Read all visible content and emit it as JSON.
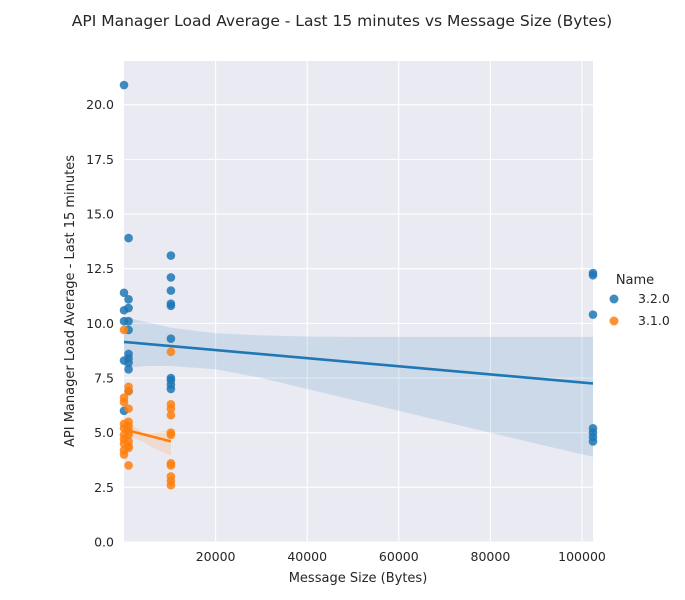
{
  "chart_data": {
    "type": "scatter",
    "title": "API Manager Load Average - Last 15 minutes vs Message Size (Bytes)",
    "xlabel": "Message Size (Bytes)",
    "ylabel": "API Manager Load Average - Last 15 minutes",
    "xlim": [
      0,
      102400
    ],
    "ylim": [
      0,
      22
    ],
    "xticks": [
      20000,
      40000,
      60000,
      80000,
      100000
    ],
    "xtick_labels": [
      "20000",
      "40000",
      "60000",
      "80000",
      "100000"
    ],
    "yticks": [
      0,
      2.5,
      5,
      7.5,
      10,
      12.5,
      15,
      17.5,
      20
    ],
    "ytick_labels": [
      "0.0",
      "2.5",
      "5.0",
      "7.5",
      "10.0",
      "12.5",
      "15.0",
      "17.5",
      "20.0"
    ],
    "grid": true,
    "background": "#eaeaf2",
    "legend": {
      "title": "Name",
      "placement": "right"
    },
    "series": [
      {
        "name": "3.2.0",
        "color": "#1f77b4",
        "points": [
          [
            0,
            20.9
          ],
          [
            0,
            11.4
          ],
          [
            0,
            10.6
          ],
          [
            0,
            10.1
          ],
          [
            0,
            8.3
          ],
          [
            0,
            6.0
          ],
          [
            1000,
            13.9
          ],
          [
            1000,
            11.1
          ],
          [
            1000,
            10.7
          ],
          [
            1000,
            10.1
          ],
          [
            1000,
            9.7
          ],
          [
            1000,
            8.6
          ],
          [
            1000,
            8.4
          ],
          [
            1000,
            8.2
          ],
          [
            1000,
            7.9
          ],
          [
            1000,
            6.9
          ],
          [
            10240,
            13.1
          ],
          [
            10240,
            12.1
          ],
          [
            10240,
            11.5
          ],
          [
            10240,
            10.9
          ],
          [
            10240,
            10.8
          ],
          [
            10240,
            9.3
          ],
          [
            10240,
            7.5
          ],
          [
            10240,
            7.4
          ],
          [
            10240,
            7.2
          ],
          [
            10240,
            7.0
          ],
          [
            102400,
            12.3
          ],
          [
            102400,
            12.2
          ],
          [
            102400,
            10.4
          ],
          [
            102400,
            5.2
          ],
          [
            102400,
            5.0
          ],
          [
            102400,
            4.8
          ],
          [
            102400,
            4.6
          ]
        ],
        "regression": {
          "x": [
            0,
            102400
          ],
          "y": [
            9.15,
            7.25
          ]
        },
        "ci_band": {
          "x": [
            0,
            2000,
            5000,
            10240,
            20000,
            30000,
            40000,
            50000,
            60000,
            70000,
            80000,
            90000,
            102400
          ],
          "upper": [
            10.3,
            10.2,
            10.05,
            9.8,
            9.55,
            9.45,
            9.4,
            9.38,
            9.38,
            9.38,
            9.38,
            9.38,
            9.38
          ],
          "lower": [
            8.0,
            8.0,
            8.05,
            8.05,
            7.9,
            7.5,
            7.0,
            6.5,
            6.0,
            5.5,
            5.0,
            4.5,
            3.9
          ]
        }
      },
      {
        "name": "3.1.0",
        "color": "#ff7f0e",
        "points": [
          [
            0,
            9.7
          ],
          [
            0,
            6.6
          ],
          [
            0,
            6.4
          ],
          [
            0,
            5.4
          ],
          [
            0,
            5.2
          ],
          [
            0,
            4.9
          ],
          [
            0,
            4.7
          ],
          [
            0,
            4.5
          ],
          [
            0,
            4.2
          ],
          [
            0,
            4.0
          ],
          [
            1000,
            7.1
          ],
          [
            1000,
            6.9
          ],
          [
            1000,
            6.1
          ],
          [
            1000,
            5.5
          ],
          [
            1000,
            5.3
          ],
          [
            1000,
            5.1
          ],
          [
            1000,
            4.9
          ],
          [
            1000,
            4.6
          ],
          [
            1000,
            4.4
          ],
          [
            1000,
            4.3
          ],
          [
            1000,
            3.5
          ],
          [
            10240,
            8.7
          ],
          [
            10240,
            6.3
          ],
          [
            10240,
            6.1
          ],
          [
            10240,
            5.8
          ],
          [
            10240,
            5.0
          ],
          [
            10240,
            4.9
          ],
          [
            10240,
            3.6
          ],
          [
            10240,
            3.5
          ],
          [
            10240,
            3.0
          ],
          [
            10240,
            2.8
          ],
          [
            10240,
            2.6
          ]
        ],
        "regression": {
          "x": [
            0,
            10240
          ],
          "y": [
            5.15,
            4.6
          ]
        },
        "ci_band": {
          "x": [
            0,
            2000,
            4000,
            6000,
            8000,
            10240
          ],
          "upper": [
            5.7,
            5.3,
            5.05,
            5.0,
            5.05,
            5.15
          ],
          "lower": [
            4.6,
            4.75,
            4.6,
            4.35,
            4.15,
            3.95
          ]
        }
      }
    ]
  }
}
